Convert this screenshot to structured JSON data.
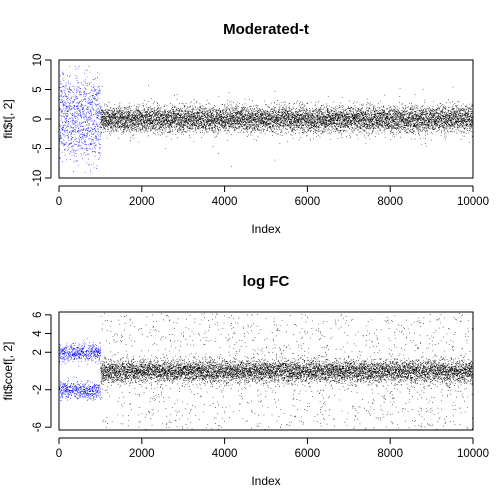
{
  "chart_data": [
    {
      "type": "scatter",
      "title": "Moderated-t",
      "xlabel": "Index",
      "ylabel": "fit$t[, 2]",
      "xlim": [
        0,
        10000
      ],
      "ylim": [
        -10,
        10
      ],
      "xticks": [
        0,
        2000,
        4000,
        6000,
        8000,
        10000
      ],
      "xtick_labels": [
        "0",
        "2000",
        "4000",
        "6000",
        "8000",
        "10000"
      ],
      "yticks": [
        -10,
        -5,
        0,
        5,
        10
      ],
      "ytick_labels": [
        "-10",
        "-5",
        "0",
        "5",
        "10"
      ],
      "grid": false,
      "series": [
        {
          "color": "#0000ff",
          "x_range": [
            1,
            1000
          ],
          "y_distribution": "bimodal-wide",
          "y_center": [
            -2.5,
            2.5
          ],
          "y_spread": 2.5,
          "y_extent": [
            -9,
            9
          ]
        },
        {
          "color": "#000000",
          "x_range": [
            1001,
            10000
          ],
          "y_distribution": "normal",
          "y_center": 0,
          "y_spread": 1.1,
          "y_extent": [
            -8,
            8
          ]
        }
      ]
    },
    {
      "type": "scatter",
      "title": "log FC",
      "xlabel": "Index",
      "ylabel": "fit$coef[, 2]",
      "xlim": [
        0,
        10000
      ],
      "ylim": [
        -6.3,
        6.3
      ],
      "xticks": [
        0,
        2000,
        4000,
        6000,
        8000,
        10000
      ],
      "xtick_labels": [
        "0",
        "2000",
        "4000",
        "6000",
        "8000",
        "10000"
      ],
      "yticks": [
        -6,
        -2,
        2,
        4,
        6
      ],
      "ytick_labels": [
        "-6",
        "-2",
        "2",
        "4",
        "6"
      ],
      "grid": false,
      "series": [
        {
          "color": "#0000ff",
          "x_range": [
            1,
            1000
          ],
          "y_distribution": "bimodal",
          "y_center": [
            -2,
            2
          ],
          "y_spread": 0.45,
          "y_extent": [
            -6.2,
            6.2
          ]
        },
        {
          "color": "#000000",
          "x_range": [
            1001,
            10000
          ],
          "y_distribution": "normal-heavy-tail",
          "y_center": 0,
          "y_spread": 0.6,
          "y_extent": [
            -6.2,
            6.2
          ]
        }
      ]
    }
  ]
}
